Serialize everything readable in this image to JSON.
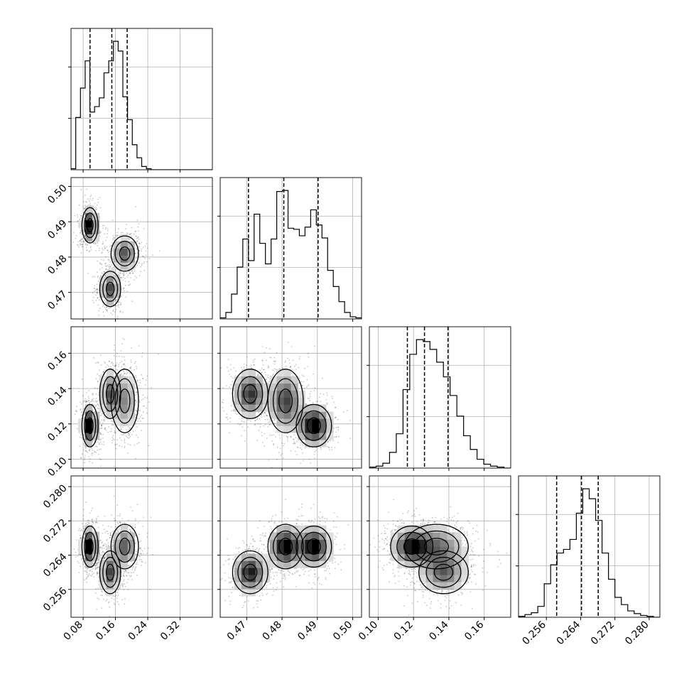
{
  "chart_data": {
    "type": "corner",
    "parameters": [
      {
        "range": [
          0.05,
          0.4
        ],
        "ticks": [
          0.08,
          0.16,
          0.24,
          0.32
        ],
        "tick_labels": [
          "0.08",
          "0.16",
          "0.24",
          "0.32"
        ],
        "quantiles": [
          0.097,
          0.151,
          0.189
        ]
      },
      {
        "range": [
          0.4625,
          0.5025
        ],
        "ticks": [
          0.47,
          0.48,
          0.49,
          0.5
        ],
        "tick_labels": [
          "0.47",
          "0.48",
          "0.49",
          "0.50"
        ],
        "quantiles": [
          0.4705,
          0.4805,
          0.4902
        ]
      },
      {
        "range": [
          0.095,
          0.175
        ],
        "ticks": [
          0.1,
          0.12,
          0.14,
          0.16
        ],
        "tick_labels": [
          "0.10",
          "0.12",
          "0.14",
          "0.16"
        ],
        "quantiles": [
          0.1165,
          0.1262,
          0.1395
        ]
      },
      {
        "range": [
          0.2495,
          0.2825
        ],
        "ticks": [
          0.256,
          0.264,
          0.272,
          0.28
        ],
        "tick_labels": [
          "0.256",
          "0.264",
          "0.272",
          "0.280"
        ],
        "quantiles": [
          0.2584,
          0.2642,
          0.2681
        ]
      }
    ],
    "histograms": [
      [
        1,
        48,
        75,
        100,
        53,
        58,
        66,
        89,
        100,
        118,
        109,
        67,
        46,
        23,
        11,
        3,
        1,
        0,
        0,
        0,
        0,
        0,
        0,
        0,
        0,
        0,
        0,
        0,
        0,
        0
      ],
      [
        1,
        6,
        23,
        48,
        74,
        54,
        97,
        70,
        51,
        74,
        118,
        119,
        84,
        83,
        77,
        85,
        101,
        87,
        75,
        45,
        30,
        16,
        6,
        2,
        1
      ],
      [
        1,
        2,
        5,
        16,
        35,
        80,
        116,
        131,
        129,
        121,
        108,
        93,
        74,
        53,
        33,
        19,
        9,
        4,
        2,
        1,
        0
      ],
      [
        1,
        3,
        5,
        12,
        37,
        58,
        71,
        75,
        86,
        115,
        142,
        131,
        107,
        71,
        42,
        22,
        14,
        7,
        4,
        2,
        1,
        0
      ]
    ],
    "clusters": [
      {
        "mean": [
          0.097,
          0.489,
          0.119,
          0.266
        ],
        "sd": [
          0.01,
          0.0025,
          0.006,
          0.0024
        ],
        "weight": 0.34
      },
      {
        "mean": [
          0.183,
          0.481,
          0.133,
          0.266
        ],
        "sd": [
          0.017,
          0.0025,
          0.009,
          0.0026
        ],
        "weight": 0.36
      },
      {
        "mean": [
          0.147,
          0.471,
          0.137,
          0.26
        ],
        "sd": [
          0.013,
          0.0025,
          0.007,
          0.0025
        ],
        "weight": 0.3
      }
    ],
    "grid": true,
    "title": "",
    "xlabel": "",
    "ylabel": ""
  }
}
